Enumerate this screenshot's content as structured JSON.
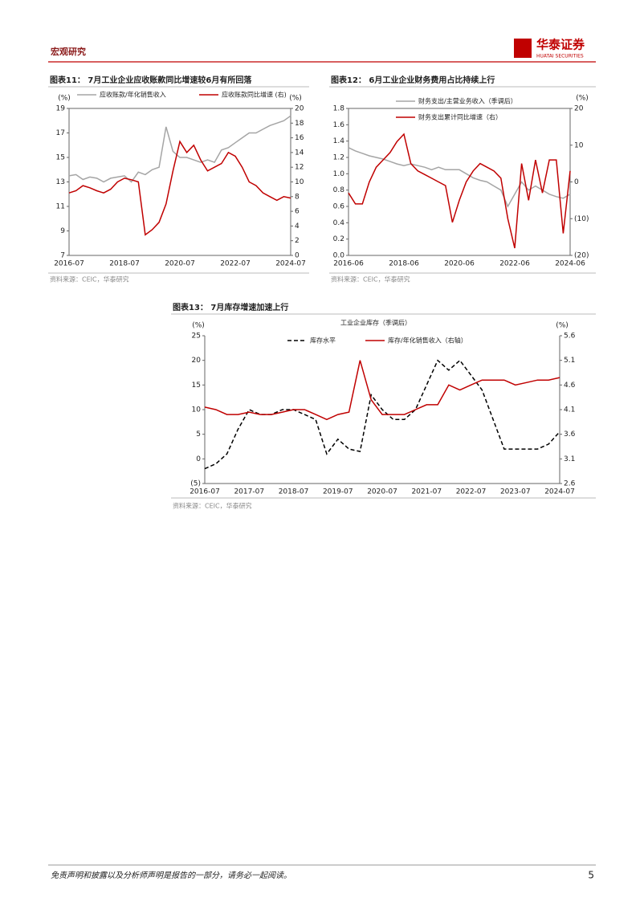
{
  "header": {
    "section": "宏观研究",
    "brand": "华泰证券",
    "brand_en": "HUATAI SECURITIES"
  },
  "chart_data": [
    {
      "type": "line",
      "title": "图表11： 7月工业企业应收账款同比增速较6月有所回落",
      "y_unit": "(%)",
      "y2_unit": "(%)",
      "x": [
        "2016-07",
        "2016-10",
        "2017-01",
        "2017-04",
        "2017-07",
        "2017-10",
        "2018-01",
        "2018-04",
        "2018-07",
        "2018-10",
        "2019-01",
        "2019-04",
        "2019-07",
        "2019-10",
        "2020-01",
        "2020-04",
        "2020-07",
        "2020-10",
        "2021-01",
        "2021-04",
        "2021-07",
        "2021-10",
        "2022-01",
        "2022-04",
        "2022-07",
        "2022-10",
        "2023-01",
        "2023-04",
        "2023-07",
        "2023-10",
        "2024-01",
        "2024-04",
        "2024-07"
      ],
      "xticks": [
        "2016-07",
        "2018-07",
        "2020-07",
        "2022-07",
        "2024-07"
      ],
      "ylim": [
        7,
        19
      ],
      "yticks": [
        7,
        9,
        11,
        13,
        15,
        17,
        19
      ],
      "y2lim": [
        0,
        20
      ],
      "y2ticks": [
        0,
        2,
        4,
        6,
        8,
        10,
        12,
        14,
        16,
        18,
        20
      ],
      "series": [
        {
          "name": "应收账款/年化销售收入",
          "color": "#a5a5a5",
          "values": [
            13.5,
            13.6,
            13.2,
            13.4,
            13.3,
            13.0,
            13.3,
            13.4,
            13.5,
            13.0,
            13.8,
            13.6,
            14.0,
            14.2,
            17.5,
            15.5,
            15.0,
            15.0,
            14.8,
            14.6,
            14.8,
            14.6,
            15.6,
            15.8,
            16.2,
            16.6,
            17.0,
            17.0,
            17.3,
            17.6,
            17.8,
            18.0,
            18.4
          ]
        },
        {
          "name": "应收账款同比增速 (右)",
          "color": "#c00000",
          "axis": "y2",
          "values": [
            8.5,
            8.8,
            9.5,
            9.2,
            8.8,
            8.5,
            9.0,
            10.0,
            10.5,
            10.3,
            10.0,
            2.8,
            3.5,
            4.5,
            7.0,
            11.5,
            15.5,
            14.0,
            15.0,
            13.0,
            11.5,
            12.0,
            12.5,
            14.0,
            13.5,
            12.0,
            10.0,
            9.5,
            8.5,
            8.0,
            7.5,
            8.0,
            7.8
          ]
        }
      ],
      "source": "资料来源：CEIC，华泰研究"
    },
    {
      "type": "line",
      "title": "图表12： 6月工业企业财务费用占比持续上行",
      "y2_unit": "(%)",
      "x": [
        "2016-06",
        "2016-09",
        "2016-12",
        "2017-03",
        "2017-06",
        "2017-09",
        "2017-12",
        "2018-03",
        "2018-06",
        "2018-09",
        "2018-12",
        "2019-03",
        "2019-06",
        "2019-09",
        "2019-12",
        "2020-03",
        "2020-06",
        "2020-09",
        "2020-12",
        "2021-03",
        "2021-06",
        "2021-09",
        "2021-12",
        "2022-03",
        "2022-06",
        "2022-09",
        "2022-12",
        "2023-03",
        "2023-06",
        "2023-09",
        "2023-12",
        "2024-03",
        "2024-06"
      ],
      "xticks": [
        "2016-06",
        "2018-06",
        "2020-06",
        "2022-06",
        "2024-06"
      ],
      "ylim": [
        0,
        1.8
      ],
      "yticks": [
        {
          "value": 0,
          "label": "0.0"
        },
        0.2,
        0.4,
        0.6,
        0.8,
        {
          "value": 1,
          "label": "1.0"
        },
        1.2,
        1.4,
        1.6,
        1.8
      ],
      "y2lim": [
        -20,
        20
      ],
      "y2ticks": [
        {
          "value": -20,
          "label": "(20)"
        },
        {
          "value": -10,
          "label": "(10)"
        },
        0,
        10,
        20
      ],
      "series": [
        {
          "name": "财务支出/主营业务收入（季调后）",
          "color": "#a5a5a5",
          "values": [
            1.32,
            1.28,
            1.25,
            1.22,
            1.2,
            1.18,
            1.15,
            1.12,
            1.1,
            1.12,
            1.1,
            1.08,
            1.05,
            1.08,
            1.05,
            1.05,
            1.05,
            1.0,
            0.95,
            0.92,
            0.9,
            0.85,
            0.8,
            0.6,
            0.75,
            0.9,
            0.8,
            0.85,
            0.8,
            0.75,
            0.72,
            0.7,
            0.75
          ]
        },
        {
          "name": "财务支出累计同比增速（右）",
          "color": "#c00000",
          "axis": "y2",
          "values": [
            -3,
            -6,
            -6,
            0,
            4,
            6,
            8,
            11,
            13,
            5,
            3,
            2,
            1,
            0,
            -1,
            -11,
            -5,
            0,
            3,
            5,
            4,
            3,
            1,
            -10,
            -18,
            5,
            -5,
            6,
            -3,
            6,
            6,
            -14,
            3
          ]
        }
      ],
      "source": "资料来源：CEIC，华泰研究"
    },
    {
      "type": "line",
      "title": "图表13： 7月库存增速加速上行",
      "subtitle": "工业企业库存（季调后）",
      "y_unit": "(%)",
      "y2_unit": "(%)",
      "x": [
        "2016-07",
        "2016-10",
        "2017-01",
        "2017-04",
        "2017-07",
        "2017-10",
        "2018-01",
        "2018-04",
        "2018-07",
        "2018-10",
        "2019-01",
        "2019-04",
        "2019-07",
        "2019-10",
        "2020-01",
        "2020-04",
        "2020-07",
        "2020-10",
        "2021-01",
        "2021-04",
        "2021-07",
        "2021-10",
        "2022-01",
        "2022-04",
        "2022-07",
        "2022-10",
        "2023-01",
        "2023-04",
        "2023-07",
        "2023-10",
        "2024-01",
        "2024-04",
        "2024-07"
      ],
      "xticks": [
        "2016-07",
        "2017-07",
        "2018-07",
        "2019-07",
        "2020-07",
        "2021-07",
        "2022-07",
        "2023-07",
        "2024-07"
      ],
      "ylim": [
        -5,
        25
      ],
      "yticks": [
        {
          "value": -5,
          "label": "(5)"
        },
        0,
        5,
        10,
        15,
        20,
        25
      ],
      "y2lim": [
        2.6,
        5.6
      ],
      "y2ticks": [
        2.6,
        3.1,
        3.6,
        4.1,
        4.6,
        5.1,
        5.6
      ],
      "series": [
        {
          "name": "库存水平",
          "color": "#000000",
          "dash": true,
          "values": [
            -2,
            -1,
            1,
            6,
            10,
            9,
            9,
            10,
            10,
            9,
            8,
            1,
            4,
            2,
            1.5,
            13,
            10,
            8,
            8,
            10,
            15,
            20,
            18,
            20,
            17,
            14,
            8,
            2,
            2,
            2,
            2,
            3,
            5.5
          ]
        },
        {
          "name": "库存/年化销售收入（右轴）",
          "color": "#c00000",
          "axis": "y2",
          "values": [
            4.15,
            4.1,
            4.0,
            4.0,
            4.05,
            4.0,
            4.0,
            4.05,
            4.1,
            4.1,
            4.0,
            3.9,
            4.0,
            4.05,
            5.1,
            4.3,
            4.0,
            4.0,
            4.0,
            4.1,
            4.2,
            4.2,
            4.6,
            4.5,
            4.6,
            4.7,
            4.7,
            4.7,
            4.6,
            4.65,
            4.7,
            4.7,
            4.75
          ]
        }
      ],
      "source": "资料来源：CEIC，华泰研究"
    }
  ],
  "footer": {
    "disclaimer": "免责声明和披露以及分析师声明是报告的一部分，请务必一起阅读。",
    "page": "5"
  }
}
